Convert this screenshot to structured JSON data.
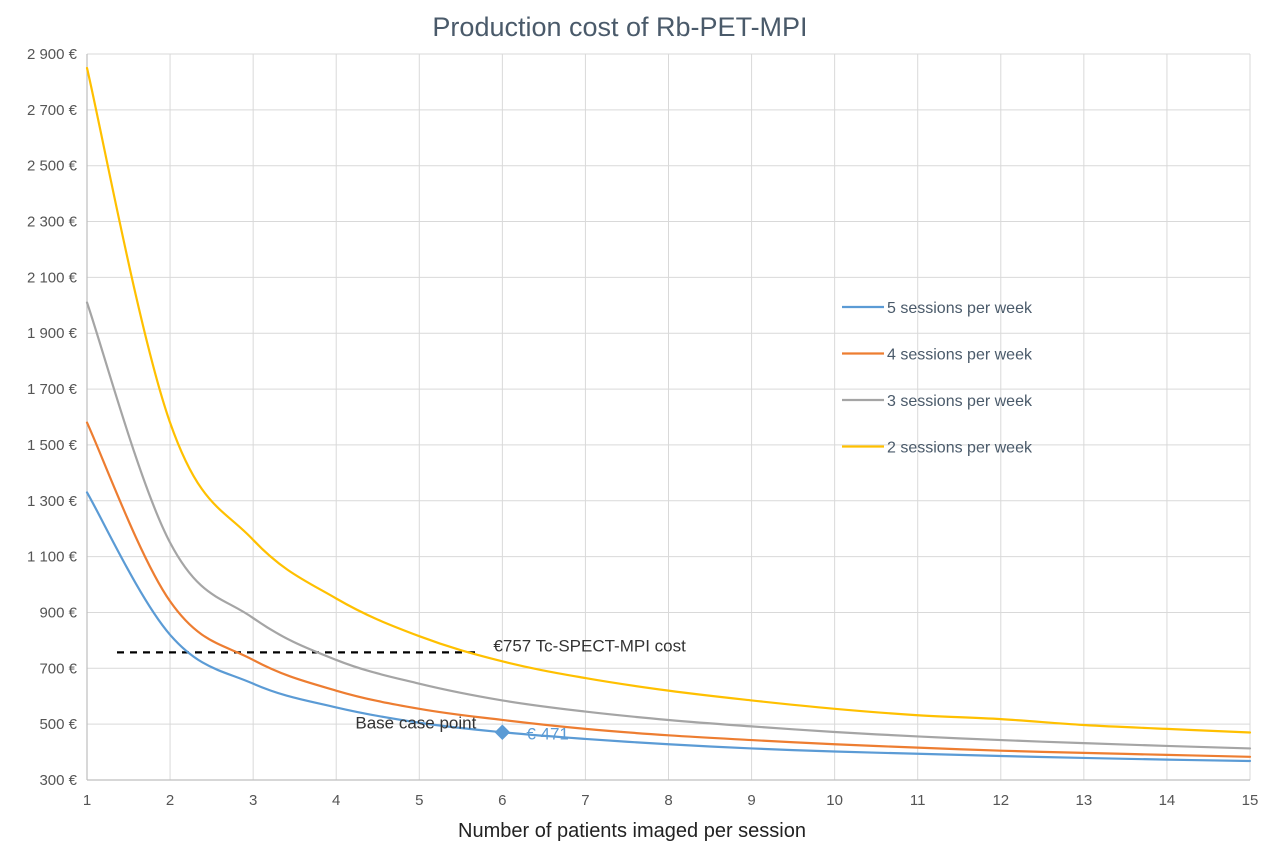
{
  "chart_data": {
    "type": "line",
    "title": "Production  cost of Rb-PET-MPI",
    "xlabel": "Number of patients imaged per session",
    "ylabel": "",
    "x": [
      1,
      2,
      3,
      4,
      5,
      6,
      7,
      8,
      9,
      10,
      11,
      12,
      13,
      14,
      15
    ],
    "xlim": [
      1,
      15
    ],
    "ylim": [
      300,
      2900
    ],
    "y_ticks": [
      300,
      500,
      700,
      900,
      1100,
      1300,
      1500,
      1700,
      1900,
      2100,
      2300,
      2500,
      2700,
      2900
    ],
    "y_tick_labels": [
      "300 €",
      "500 €",
      "700 €",
      "900 €",
      "1 100 €",
      "1 300 €",
      "1 500 €",
      "1 700 €",
      "1 900 €",
      "2 100 €",
      "2 300 €",
      "2 500 €",
      "2 700 €",
      "2 900 €"
    ],
    "x_tick_labels": [
      "1",
      "2",
      "3",
      "4",
      "5",
      "6",
      "7",
      "8",
      "9",
      "10",
      "11",
      "12",
      "13",
      "14",
      "15"
    ],
    "grid": true,
    "legend_position": "right",
    "series": [
      {
        "name": "5 sessions per week",
        "color": "#5b9bd5",
        "values": [
          1330,
          820,
          645,
          560,
          505,
          471,
          447,
          428,
          413,
          402,
          394,
          386,
          379,
          373,
          368
        ]
      },
      {
        "name": "4 sessions per week",
        "color": "#ed7d31",
        "values": [
          1580,
          940,
          730,
          620,
          555,
          515,
          483,
          460,
          443,
          428,
          416,
          405,
          397,
          390,
          383
        ]
      },
      {
        "name": "3 sessions per week",
        "color": "#a5a5a5",
        "values": [
          2010,
          1150,
          880,
          730,
          645,
          585,
          545,
          515,
          492,
          472,
          456,
          443,
          432,
          422,
          413
        ]
      },
      {
        "name": "2 sessions per week",
        "color": "#ffc000",
        "values": [
          2850,
          1580,
          1160,
          950,
          815,
          725,
          665,
          620,
          585,
          555,
          532,
          518,
          497,
          483,
          470
        ]
      }
    ],
    "reference_line": {
      "y": 757,
      "x_end": 5.7,
      "label": "€757  Tc-SPECT-MPI cost",
      "color": "#000000"
    },
    "marker": {
      "x": 6,
      "y": 471,
      "label_left": "Base case point",
      "label_right": "€ 471",
      "color": "#5b9bd5"
    }
  }
}
